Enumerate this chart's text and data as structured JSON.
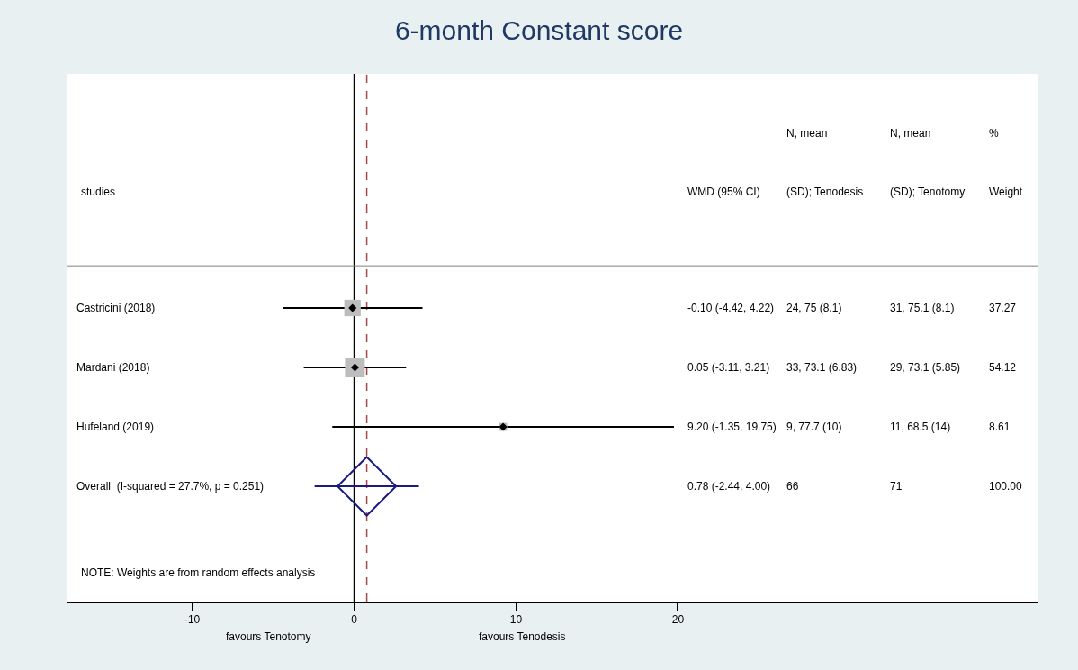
{
  "chart_data": {
    "type": "scatter",
    "orientation": "horizontal",
    "title": "6-month Constant score",
    "categories": [
      "Castricini (2018)",
      "Mardani (2018)",
      "Hufeland (2019)",
      "Overall  (I-squared = 27.7%, p = 0.251)"
    ],
    "series": [
      {
        "marker": "square",
        "color": "#bdbdbd",
        "values": [
          -0.1,
          0.05,
          9.2,
          null
        ],
        "errors": [
          [
            -4.42,
            4.22
          ],
          [
            -3.11,
            3.21
          ],
          [
            -1.35,
            19.75
          ],
          null
        ],
        "sizes": [
          0.69,
          1,
          0.16,
          null
        ]
      },
      {
        "marker": "diamond",
        "color": "#1a1a80",
        "values": [
          null,
          null,
          null,
          0.78
        ],
        "errors": [
          null,
          null,
          null,
          [
            -2.44,
            4.0
          ]
        ]
      }
    ],
    "xlim": [
      -17.7,
      42.2
    ],
    "xticks": [
      -10,
      0,
      10,
      20
    ],
    "ref_lines": [
      {
        "axis": "x",
        "value": 0,
        "color": "#000000",
        "line_style": "solid"
      },
      {
        "axis": "x",
        "value": 0.78,
        "color": "#a0484a",
        "line_style": "dashed"
      }
    ],
    "grid": false,
    "annotations": [
      "studies",
      "WMD (95% CI)",
      "N, mean",
      "(SD); Tenodesis",
      "N, mean",
      "(SD); Tenotomy",
      "%",
      "Weight",
      "-0.10 (-4.42, 4.22)",
      "24, 75 (8.1)",
      "31, 75.1 (8.1)",
      "37.27",
      "0.05 (-3.11, 3.21)",
      "33, 73.1 (6.83)",
      "29, 73.1 (5.85)",
      "54.12",
      "9.20 (-1.35, 19.75)",
      "9, 77.7 (10)",
      "11, 68.5 (14)",
      "8.61",
      "0.78 (-2.44, 4.00)",
      "66",
      "71",
      "100.00",
      "NOTE: Weights are from random effects analysis",
      "favours Tenotomy",
      "favours Tenodesis"
    ]
  }
}
